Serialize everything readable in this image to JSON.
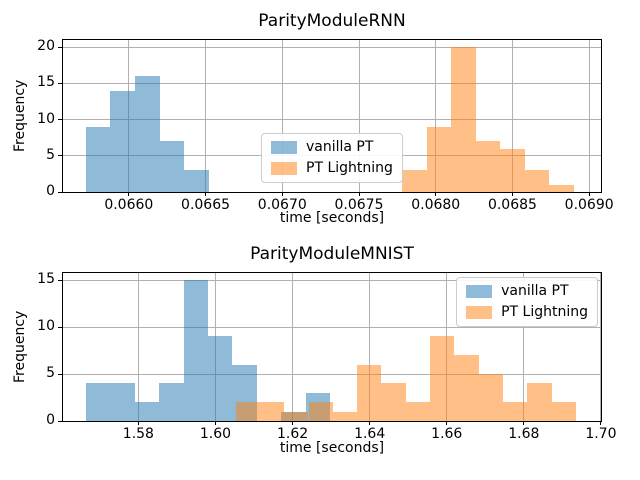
{
  "style": {
    "accent_blue": "#1f77b4",
    "accent_orange": "#ff7f0e",
    "bar_alpha": 0.5,
    "grid_color": "#b0b0b0",
    "spine_color": "#000000",
    "text_color": "#000000",
    "legend_border": "#cccccc"
  },
  "legend": {
    "items": [
      {
        "label": "vanilla PT",
        "color": "#1f77b4"
      },
      {
        "label": "PT Lightning",
        "color": "#ff7f0e"
      }
    ]
  },
  "chart_data": [
    {
      "type": "bar",
      "subtype": "histogram",
      "title": "ParityModuleRNN",
      "xlabel": "time [seconds]",
      "ylabel": "Frequency",
      "xlim": [
        0.065571,
        0.069077
      ],
      "ylim": [
        0,
        21
      ],
      "xticks": [
        0.066,
        0.0665,
        0.067,
        0.0675,
        0.068,
        0.0685,
        0.069
      ],
      "xtick_labels": [
        "0.0660",
        "0.0665",
        "0.0670",
        "0.0675",
        "0.0680",
        "0.0685",
        "0.0690"
      ],
      "yticks": [
        0,
        5,
        10,
        15,
        20
      ],
      "ytick_labels": [
        "0",
        "5",
        "10",
        "15",
        "20"
      ],
      "grid": true,
      "legend_position": "center",
      "series": [
        {
          "name": "vanilla PT",
          "color": "#1f77b4",
          "bin_start": 0.06572,
          "bin_width": 0.00016,
          "counts": [
            9,
            14,
            16,
            7,
            3
          ]
        },
        {
          "name": "PT Lightning",
          "color": "#ff7f0e",
          "bin_start": 0.06778,
          "bin_width": 0.00016,
          "counts": [
            3,
            9,
            20,
            7,
            6,
            3,
            1
          ]
        }
      ]
    },
    {
      "type": "bar",
      "subtype": "histogram",
      "title": "ParityModuleMNIST",
      "xlabel": "time [seconds]",
      "ylabel": "Frequency",
      "xlim": [
        1.56044,
        1.70001
      ],
      "ylim": [
        0,
        15.75
      ],
      "xticks": [
        1.58,
        1.6,
        1.62,
        1.64,
        1.66,
        1.68,
        1.7
      ],
      "xtick_labels": [
        "1.58",
        "1.60",
        "1.62",
        "1.64",
        "1.66",
        "1.68",
        "1.70"
      ],
      "yticks": [
        0,
        5,
        10,
        15
      ],
      "ytick_labels": [
        "0",
        "5",
        "10",
        "15"
      ],
      "grid": true,
      "legend_position": "upper right",
      "series": [
        {
          "name": "vanilla PT",
          "color": "#1f77b4",
          "bin_start": 1.5664,
          "bin_width": 0.00633,
          "counts": [
            4,
            4,
            2,
            4,
            15,
            9,
            6,
            0,
            1,
            3
          ]
        },
        {
          "name": "PT Lightning",
          "color": "#ff7f0e",
          "bin_start": 1.6052,
          "bin_width": 0.00631,
          "counts": [
            2,
            2,
            1,
            2,
            1,
            6,
            4,
            2,
            9,
            7,
            5,
            2,
            4,
            2
          ]
        }
      ]
    }
  ]
}
